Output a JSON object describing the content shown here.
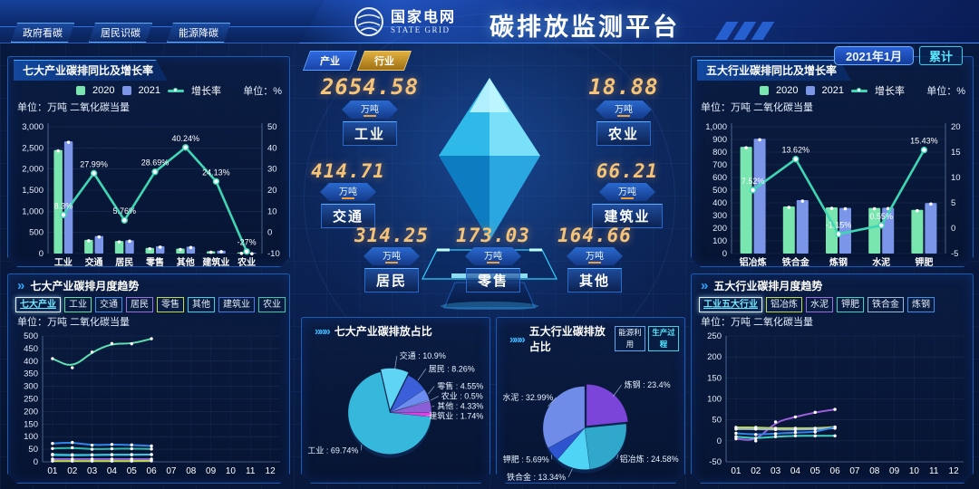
{
  "colors": {
    "bar_2020": "#78e6ae",
    "bar_2021": "#7b96e8",
    "growth_line": "#3fd6b4",
    "accent_cyan": "#2fd0ff",
    "digital_amber": "#f6c478"
  },
  "icons": {
    "double_arrow": "»",
    "triple_arrow": "»»»"
  },
  "header": {
    "nav": [
      {
        "label": "政府看碳"
      },
      {
        "label": "居民识碳"
      },
      {
        "label": "能源降碳"
      }
    ],
    "logo": {
      "cn": "国家电网",
      "en": "STATE GRID"
    },
    "title": "碳排放监测平台",
    "date_label": "2021年1月",
    "cumulative_label": "累计"
  },
  "center": {
    "tabs": [
      {
        "label": "产业",
        "selected": true
      },
      {
        "label": "行业",
        "selected": false
      }
    ],
    "stats": [
      {
        "name": "工业",
        "value": "2654.58",
        "unit": "万吨"
      },
      {
        "name": "农业",
        "value": "18.88",
        "unit": "万吨"
      },
      {
        "name": "交通",
        "value": "414.71",
        "unit": "万吨"
      },
      {
        "name": "建筑业",
        "value": "66.21",
        "unit": "万吨"
      },
      {
        "name": "居民",
        "value": "314.25",
        "unit": "万吨"
      },
      {
        "name": "零售",
        "value": "173.03",
        "unit": "万吨"
      },
      {
        "name": "其他",
        "value": "164.66",
        "unit": "万吨"
      }
    ]
  },
  "panels": {
    "left_top": {
      "title": "七大产业碳排同比及增长率",
      "legend": [
        "2020",
        "2021",
        "增长率"
      ],
      "unit_left": "单位：万吨 二氧化碳当量",
      "unit_right": "单位：%",
      "chart": "seven-industry-yoy"
    },
    "right_top": {
      "title": "五大行业碳排同比及增长率",
      "legend": [
        "2020",
        "2021",
        "增长率"
      ],
      "unit_left": "单位：万吨 二氧化碳当量",
      "unit_right": "单位：%",
      "chart": "five-sector-yoy"
    },
    "left_bottom": {
      "title": "七大产业碳排月度趋势",
      "unit": "单位：万吨 二氧化碳当量",
      "buttons": [
        {
          "label": "七大产业",
          "color": "#d8ecff",
          "selected": true
        },
        {
          "label": "工业",
          "color": "#5ee0a0"
        },
        {
          "label": "交通",
          "color": "#3f8fe8"
        },
        {
          "label": "居民",
          "color": "#9a6fe0"
        },
        {
          "label": "零售",
          "color": "#c0d84e"
        },
        {
          "label": "其他",
          "color": "#3fd0e8"
        },
        {
          "label": "建筑业",
          "color": "#4a7ae0"
        },
        {
          "label": "农业",
          "color": "#3fc8a8"
        }
      ],
      "chart": "seven-industry-monthly"
    },
    "right_bottom": {
      "title": "五大行业碳排月度趋势",
      "unit": "单位：万吨 二氧化碳当量",
      "buttons": [
        {
          "label": "工业五大行业",
          "color": "#d8ecff",
          "selected": true
        },
        {
          "label": "铝冶炼",
          "color": "#c0d84e"
        },
        {
          "label": "水泥",
          "color": "#9a6fe0"
        },
        {
          "label": "钾肥",
          "color": "#3fd0c0"
        },
        {
          "label": "铁合金",
          "color": "#9ab8d8"
        },
        {
          "label": "炼钢",
          "color": "#3f8fe8"
        }
      ],
      "chart": "five-sector-monthly"
    },
    "pie_left": {
      "title": "七大产业碳排放占比",
      "chart": "seven-industry-share"
    },
    "pie_right": {
      "title": "五大行业碳排放占比",
      "buttons": [
        {
          "label": "能源利用",
          "color": "#5fa8f0"
        },
        {
          "label": "生产过程",
          "color": "#3fd0e8",
          "selected": true
        }
      ],
      "chart": "five-sector-share"
    }
  },
  "chart_data": [
    {
      "id": "seven-industry-yoy",
      "type": "bar+line",
      "title": "七大产业碳排同比及增长率",
      "categories": [
        "工业",
        "交通",
        "居民",
        "零售",
        "其他",
        "建筑业",
        "农业"
      ],
      "series": [
        {
          "name": "2020",
          "type": "bar",
          "color": "#78e6ae",
          "values": [
            2451,
            324,
            297,
            134,
            117,
            53,
            26
          ]
        },
        {
          "name": "2021",
          "type": "bar",
          "color": "#7b96e8",
          "values": [
            2654.58,
            414.71,
            314.25,
            173.03,
            164.66,
            66.21,
            18.88
          ]
        },
        {
          "name": "增长率",
          "type": "line",
          "axis": "right",
          "color": "#3fd6b4",
          "values": [
            8.3,
            27.99,
            5.76,
            28.69,
            40.24,
            24.13,
            -27
          ],
          "labels": [
            "8.3%",
            "27.99%",
            "5.76%",
            "28.69%",
            "40.24%",
            "24.13%",
            "-27%"
          ]
        }
      ],
      "y_left": {
        "min": 0,
        "max": 3000,
        "step": 500
      },
      "y_right": {
        "min": -10,
        "max": 50,
        "step": 10
      }
    },
    {
      "id": "five-sector-yoy",
      "type": "bar+line",
      "title": "五大行业碳排同比及增长率",
      "categories": [
        "铝冶炼",
        "铁合金",
        "炼钢",
        "水泥",
        "钾肥"
      ],
      "series": [
        {
          "name": "2020",
          "type": "bar",
          "color": "#78e6ae",
          "values": [
            842,
            371,
            364,
            360,
            345
          ]
        },
        {
          "name": "2021",
          "type": "bar",
          "color": "#7b96e8",
          "values": [
            905,
            421,
            360,
            362,
            398
          ]
        },
        {
          "name": "增长率",
          "type": "line",
          "axis": "right",
          "color": "#3fd6b4",
          "values": [
            7.52,
            13.62,
            -1.15,
            0.55,
            15.43
          ],
          "labels": [
            "7.52%",
            "13.62%",
            "-1.15%",
            "0.55%",
            "15.43%"
          ]
        }
      ],
      "y_left": {
        "min": 0,
        "max": 1000,
        "step": 100
      },
      "y_right": {
        "min": -5,
        "max": 20,
        "step": 5
      }
    },
    {
      "id": "seven-industry-monthly",
      "type": "line",
      "title": "七大产业碳排月度趋势",
      "x": [
        "01",
        "02",
        "03",
        "04",
        "05",
        "06",
        "07",
        "08",
        "09",
        "10",
        "11",
        "12"
      ],
      "y": {
        "min": 0,
        "max": 500,
        "step": 50
      },
      "series": [
        {
          "name": "工业",
          "color": "#5ee0b0",
          "values": [
            410,
            374,
            436,
            470,
            469,
            489
          ]
        },
        {
          "name": "交通",
          "color": "#2f86e8",
          "values": [
            73,
            77,
            66,
            69,
            67,
            63
          ]
        },
        {
          "name": "居民",
          "color": "#2fb8ac",
          "values": [
            53,
            56,
            50,
            52,
            52,
            51
          ]
        },
        {
          "name": "零售",
          "color": "#1f9e8a",
          "values": [
            30,
            28,
            28,
            29,
            29,
            29
          ]
        },
        {
          "name": "其他",
          "color": "#35c8e8",
          "values": [
            27,
            26,
            27,
            28,
            28,
            29
          ]
        },
        {
          "name": "建筑业",
          "color": "#8a66d8",
          "values": [
            11,
            11,
            11,
            11,
            11,
            11
          ]
        },
        {
          "name": "农业",
          "color": "#c0d84e",
          "values": [
            3,
            3,
            3,
            3,
            3,
            4
          ]
        }
      ]
    },
    {
      "id": "five-sector-monthly",
      "type": "line",
      "title": "五大行业碳排月度趋势",
      "x": [
        "01",
        "02",
        "03",
        "04",
        "05",
        "06",
        "07",
        "08",
        "09",
        "10",
        "11",
        "12"
      ],
      "y": {
        "min": -50,
        "max": 250,
        "step": 50
      },
      "series": [
        {
          "name": "水泥",
          "color": "#9a5fd8",
          "values": [
            5,
            0,
            45,
            57,
            68,
            75
          ]
        },
        {
          "name": "铝冶炼",
          "color": "#c0d84e",
          "values": [
            32,
            32,
            30,
            30,
            30,
            33
          ]
        },
        {
          "name": "铁合金",
          "color": "#9ab8d8",
          "values": [
            28,
            28,
            27,
            27,
            28,
            30
          ]
        },
        {
          "name": "炼钢",
          "color": "#2f86e8",
          "values": [
            18,
            15,
            17,
            20,
            21,
            33
          ]
        },
        {
          "name": "钾肥",
          "color": "#3fd0c0",
          "values": [
            10,
            6,
            10,
            12,
            12,
            12
          ]
        }
      ]
    },
    {
      "id": "seven-industry-share",
      "type": "pie",
      "title": "七大产业碳排放占比",
      "start_deg": -13,
      "slices": [
        {
          "name": "交通",
          "value": 10.9,
          "label": "交通 : 10.9%",
          "color": "#5fd4f5",
          "explode": true
        },
        {
          "name": "居民",
          "value": 8.26,
          "label": "居民 : 8.26%",
          "color": "#3a5fd9"
        },
        {
          "name": "零售",
          "value": 4.55,
          "label": "零售 : 4.55%",
          "color": "#6b8df0"
        },
        {
          "name": "农业",
          "value": 0.5,
          "label": "农业 : 0.5%",
          "color": "#9aa8f0"
        },
        {
          "name": "其他",
          "value": 4.33,
          "label": "其他 : 4.33%",
          "color": "#8a5fd8"
        },
        {
          "name": "建筑业",
          "value": 1.74,
          "label": "建筑业 : 1.74%",
          "color": "#e040e0"
        },
        {
          "name": "工业",
          "value": 69.74,
          "label": "工业 : 69.74%",
          "color": "#35b8dc"
        }
      ]
    },
    {
      "id": "five-sector-share",
      "type": "pie",
      "title": "五大行业碳排放占比",
      "start_deg": 0,
      "slices": [
        {
          "name": "炼钢",
          "value": 23.4,
          "label": "炼钢 : 23.4%",
          "color": "#7a45d8",
          "explode": true
        },
        {
          "name": "铝冶炼",
          "value": 24.58,
          "label": "铝冶炼 : 24.58%",
          "color": "#2fa8cc"
        },
        {
          "name": "铁合金",
          "value": 13.34,
          "label": "铁合金 : 13.34%",
          "color": "#4fd4f5"
        },
        {
          "name": "钾肥",
          "value": 5.69,
          "label": "钾肥 : 5.69%",
          "color": "#2f54d0"
        },
        {
          "name": "水泥",
          "value": 32.99,
          "label": "水泥 : 32.99%",
          "color": "#6f8ce8"
        }
      ]
    }
  ]
}
